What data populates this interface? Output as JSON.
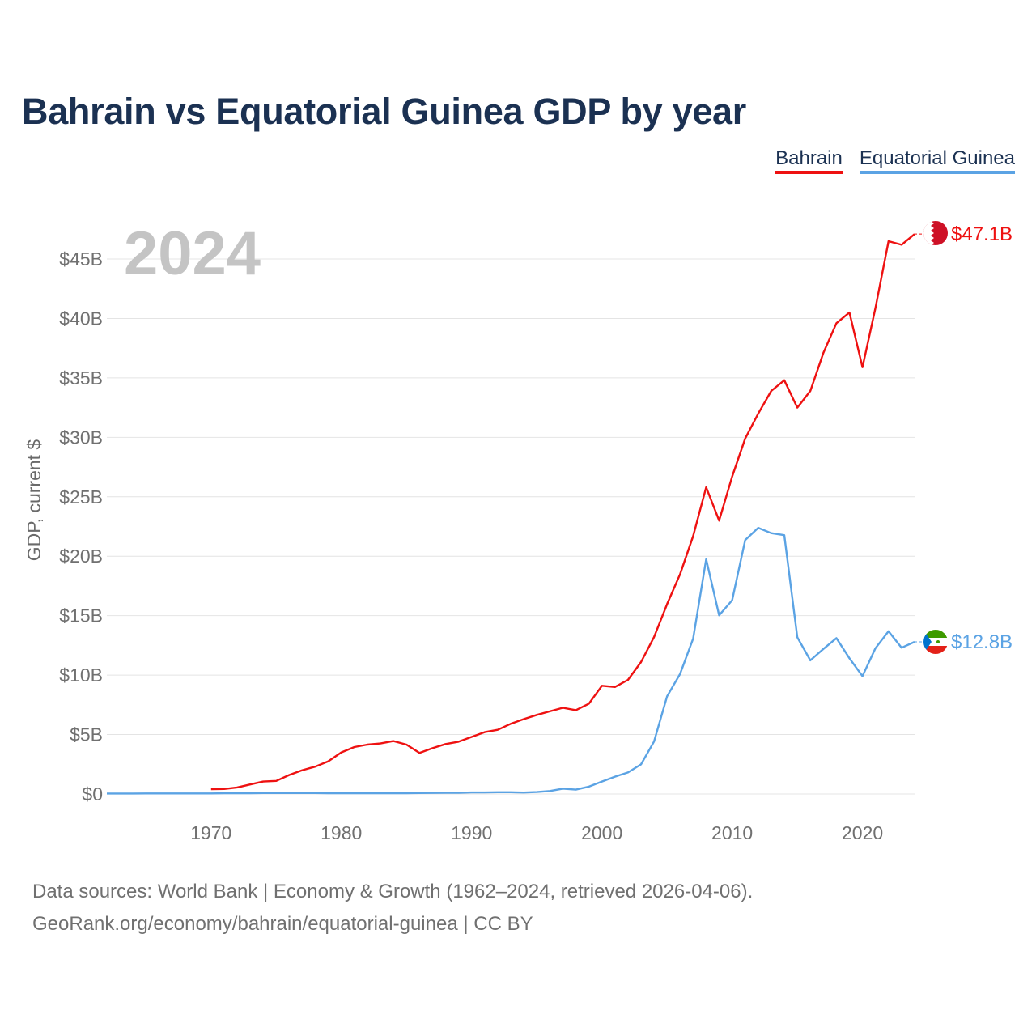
{
  "chart_data": {
    "type": "line",
    "title": "Bahrain vs Equatorial Guinea GDP by year",
    "year_label": "2024",
    "ylabel": "GDP, current $",
    "xlabel": "",
    "xlim": [
      1962,
      2024
    ],
    "ylim": [
      0,
      45
    ],
    "x_ticks": [
      1970,
      1980,
      1990,
      2000,
      2010,
      2020
    ],
    "y_ticks": [
      {
        "value": 0,
        "label": "$0"
      },
      {
        "value": 5,
        "label": "$5B"
      },
      {
        "value": 10,
        "label": "$10B"
      },
      {
        "value": 15,
        "label": "$15B"
      },
      {
        "value": 20,
        "label": "$20B"
      },
      {
        "value": 25,
        "label": "$25B"
      },
      {
        "value": 30,
        "label": "$30B"
      },
      {
        "value": 35,
        "label": "$35B"
      },
      {
        "value": 40,
        "label": "$40B"
      },
      {
        "value": 45,
        "label": "$45B"
      }
    ],
    "series": [
      {
        "name": "Bahrain",
        "color": "#ee1111",
        "end_label": "$47.1B",
        "flag": "bahrain-flag-icon",
        "x": [
          1970,
          1971,
          1972,
          1973,
          1974,
          1975,
          1976,
          1977,
          1978,
          1979,
          1980,
          1981,
          1982,
          1983,
          1984,
          1985,
          1986,
          1987,
          1988,
          1989,
          1990,
          1991,
          1992,
          1993,
          1994,
          1995,
          1996,
          1997,
          1998,
          1999,
          2000,
          2001,
          2002,
          2003,
          2004,
          2005,
          2006,
          2007,
          2008,
          2009,
          2010,
          2011,
          2012,
          2013,
          2014,
          2015,
          2016,
          2017,
          2018,
          2019,
          2020,
          2021,
          2022,
          2023,
          2024
        ],
        "values": [
          0.4,
          0.42,
          0.55,
          0.8,
          1.05,
          1.1,
          1.6,
          2.0,
          2.3,
          2.75,
          3.5,
          3.95,
          4.15,
          4.25,
          4.45,
          4.15,
          3.45,
          3.85,
          4.2,
          4.4,
          4.8,
          5.2,
          5.4,
          5.9,
          6.3,
          6.65,
          6.95,
          7.25,
          7.05,
          7.6,
          9.1,
          9.0,
          9.6,
          11.1,
          13.2,
          15.97,
          18.5,
          21.7,
          25.8,
          23.0,
          26.7,
          29.9,
          32.0,
          33.9,
          34.8,
          32.5,
          33.9,
          37.1,
          39.6,
          40.5,
          35.9,
          40.9,
          46.5,
          46.2,
          47.1
        ]
      },
      {
        "name": "Equatorial Guinea",
        "color": "#5ba3e4",
        "end_label": "$12.8B",
        "flag": "equatorial-guinea-flag-icon",
        "x": [
          1962,
          1963,
          1964,
          1965,
          1966,
          1967,
          1968,
          1969,
          1970,
          1971,
          1972,
          1973,
          1974,
          1975,
          1976,
          1977,
          1978,
          1979,
          1980,
          1981,
          1982,
          1983,
          1984,
          1985,
          1986,
          1987,
          1988,
          1989,
          1990,
          1991,
          1992,
          1993,
          1994,
          1995,
          1996,
          1997,
          1998,
          1999,
          2000,
          2001,
          2002,
          2003,
          2004,
          2005,
          2006,
          2007,
          2008,
          2009,
          2010,
          2011,
          2012,
          2013,
          2014,
          2015,
          2016,
          2017,
          2018,
          2019,
          2020,
          2021,
          2022,
          2023,
          2024
        ],
        "values": [
          0.04,
          0.04,
          0.04,
          0.05,
          0.05,
          0.05,
          0.05,
          0.05,
          0.05,
          0.06,
          0.06,
          0.07,
          0.08,
          0.08,
          0.08,
          0.08,
          0.08,
          0.07,
          0.06,
          0.06,
          0.06,
          0.06,
          0.06,
          0.07,
          0.08,
          0.09,
          0.1,
          0.1,
          0.13,
          0.13,
          0.15,
          0.15,
          0.12,
          0.16,
          0.25,
          0.45,
          0.37,
          0.62,
          1.05,
          1.46,
          1.81,
          2.49,
          4.41,
          8.22,
          10.1,
          13.07,
          19.75,
          15.03,
          16.3,
          21.36,
          22.39,
          21.94,
          21.77,
          13.19,
          11.24,
          12.2,
          13.11,
          11.42,
          9.91,
          12.27,
          13.69,
          12.3,
          12.8
        ]
      }
    ]
  },
  "legend": {
    "items": [
      {
        "label": "Bahrain",
        "color": "#ee1111"
      },
      {
        "label": "Equatorial Guinea",
        "color": "#5ba3e4"
      }
    ]
  },
  "footer": {
    "line1": "Data sources: World Bank | Economy & Growth (1962–2024, retrieved 2026-04-06).",
    "line2": "GeoRank.org/economy/bahrain/equatorial-guinea | CC BY"
  }
}
